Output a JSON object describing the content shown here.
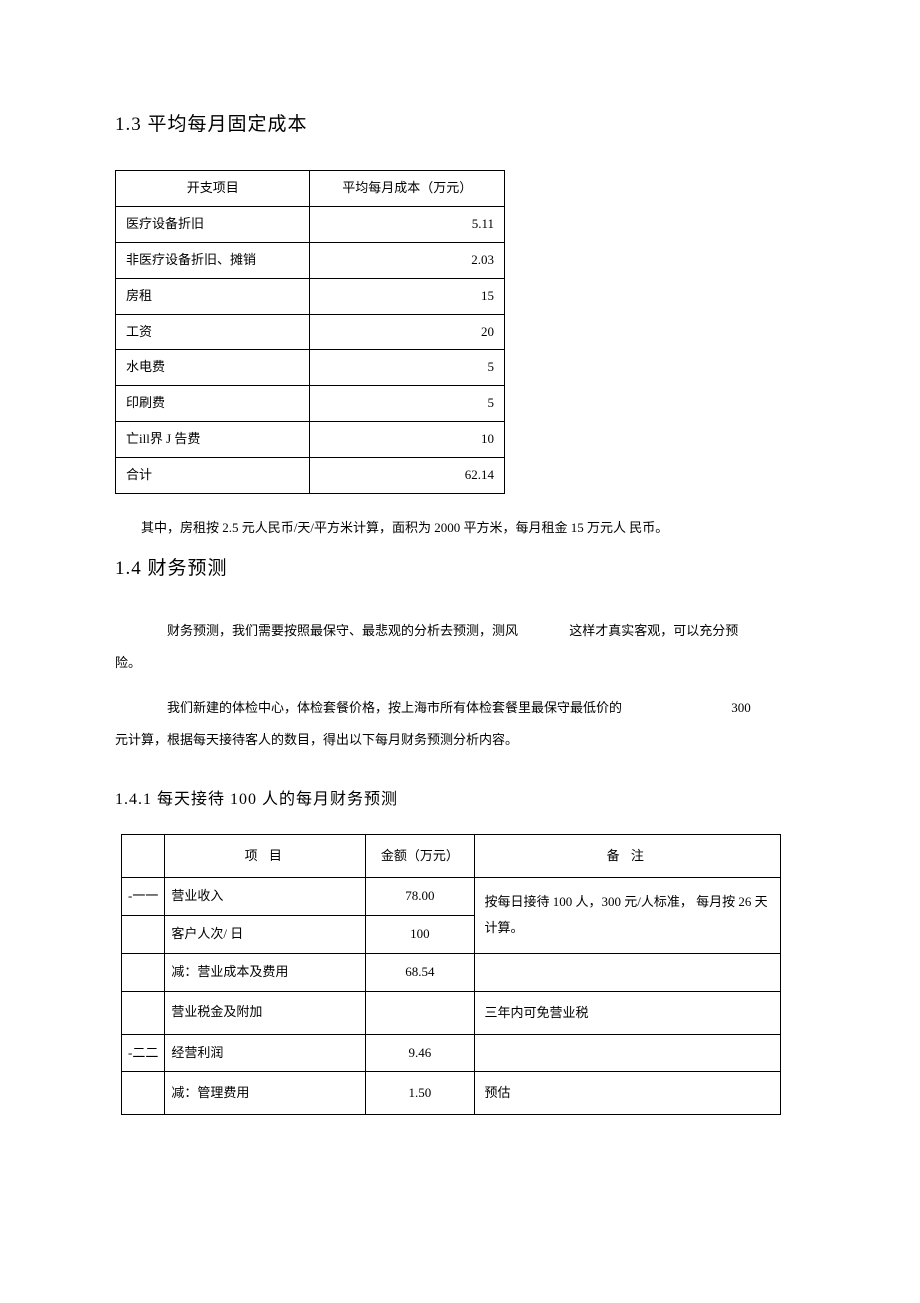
{
  "section13": {
    "heading": "1.3 平均每月固定成本",
    "table": {
      "columns": [
        "开支项目",
        "平均每月成本（万元）"
      ],
      "rows": [
        {
          "label": "医疗设备折旧",
          "value": "5.11"
        },
        {
          "label": "非医疗设备折旧、摊销",
          "value": "2.03"
        },
        {
          "label": "房租",
          "value": "15"
        },
        {
          "label": "工资",
          "value": "20"
        },
        {
          "label": "水电费",
          "value": "5"
        },
        {
          "label": "印刷费",
          "value": "5"
        },
        {
          "label": "亡ill界 J 告费",
          "value": "10"
        },
        {
          "label": "合计",
          "value": "62.14"
        }
      ],
      "border_color": "#000000",
      "font_size": 13
    },
    "note": "其中，房租按 2.5 元人民币/天/平方米计算，面积为 2000 平方米，每月租金 15 万元人 民币。"
  },
  "section14": {
    "heading": "1.4 财务预测",
    "para1_a": "财务预测，我们需要按照最保守、最悲观的分析去预测，测风",
    "para1_b": "这样才真实客观，可以充分预",
    "para1_c": "险。",
    "para2_a": "我们新建的体检中心，体检套餐价格，按上海市所有体检套餐里最保守最低价的",
    "para2_b": "300",
    "para2_c": "元计算，根据每天接待客人的数目，得出以下每月财务预测分析内容。"
  },
  "section141": {
    "heading": "1.4.1 每天接待 100 人的每月财务预测",
    "table": {
      "columns": {
        "idx": "",
        "item": "项   目",
        "amount": "金额（万元）",
        "note": "备      注"
      },
      "rows": [
        {
          "idx": "-一一",
          "item": "营业收入",
          "item_class": "",
          "amount": "78.00",
          "note_rowspan": 2,
          "note": "按每日接待 100 人，300 元/人标准，  每月按 26 天计算。"
        },
        {
          "idx": "",
          "item": "客户人次/ 日",
          "item_class": "",
          "amount": "100"
        },
        {
          "idx": "",
          "item": "减：营业成本及费用",
          "item_class": "indent-1",
          "amount": "68.54",
          "note": ""
        },
        {
          "idx": "",
          "item": "营业税金及附加",
          "item_class": "indent-2",
          "amount": "",
          "note": "三年内可免营业税"
        },
        {
          "idx": "-二二",
          "item": "经营利润",
          "item_class": "",
          "amount": "9.46",
          "note": ""
        },
        {
          "idx": "",
          "item": "减：管理费用",
          "item_class": "indent-1",
          "amount": "1.50",
          "note": "预估"
        }
      ],
      "border_color": "#000000",
      "font_size": 13
    }
  },
  "colors": {
    "text": "#000000",
    "background": "#ffffff",
    "border": "#000000"
  },
  "typography": {
    "body_font": "SimSun",
    "heading_size_pt": 19,
    "subheading_size_pt": 16,
    "body_size_pt": 13
  }
}
